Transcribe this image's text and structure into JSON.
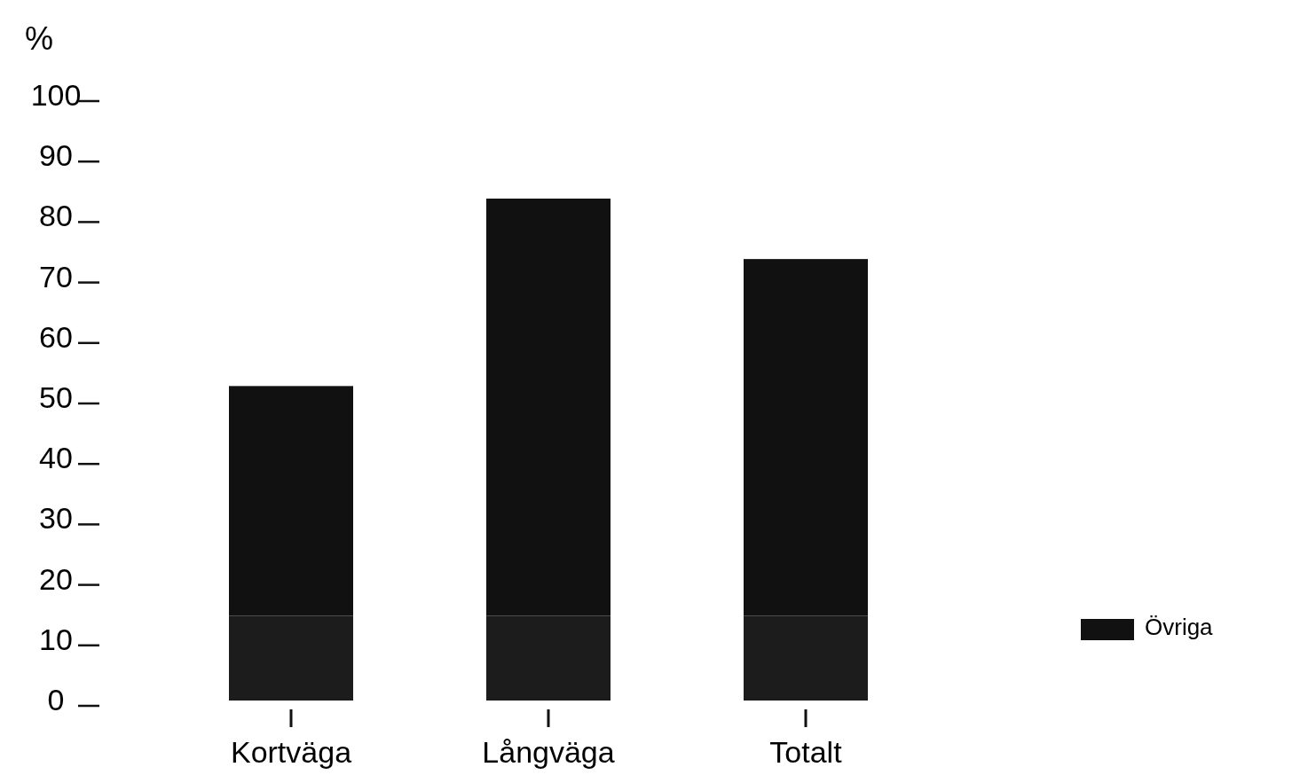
{
  "chart_data": {
    "type": "bar",
    "ylabel": "%",
    "categories": [
      "Kortväga",
      "Långväga",
      "Totalt"
    ],
    "stacked": true,
    "series": [
      {
        "color": "#1c1c1c",
        "values": [
          14,
          14,
          14
        ]
      },
      {
        "name": "Övriga",
        "color": "#111111",
        "values": [
          38,
          69,
          59
        ]
      }
    ],
    "ylim": [
      0,
      100
    ],
    "yticks": [
      0,
      10,
      20,
      30,
      40,
      50,
      60,
      70,
      80,
      90,
      100
    ],
    "grid": false,
    "legend": "bottom right"
  }
}
